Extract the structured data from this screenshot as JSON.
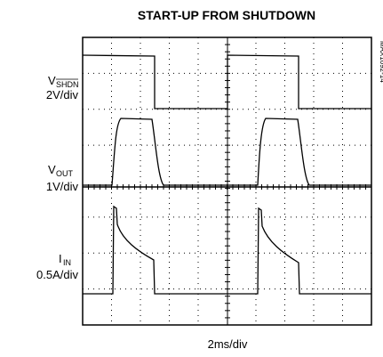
{
  "title": "START-UP FROM SHUTDOWN",
  "traces": [
    {
      "symbol": "V",
      "subscript": "SHDN",
      "scale": "2V/div"
    },
    {
      "symbol": "V",
      "subscript": "OUT",
      "scale": "1V/div"
    },
    {
      "symbol": "I",
      "subscript": "IN",
      "scale": "0.5A/div"
    }
  ],
  "time_scale": "2ms/div",
  "figure_id": "MAX1692-14"
}
